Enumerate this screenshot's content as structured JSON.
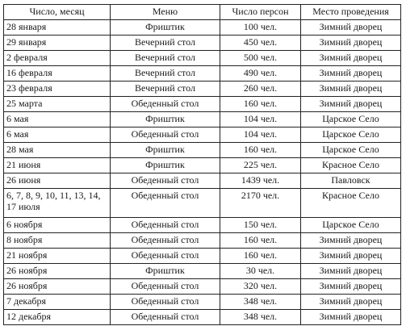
{
  "headers": [
    "Число, месяц",
    "Меню",
    "Число персон",
    "Место проведения"
  ],
  "rows": [
    [
      "28 января",
      "Фриштик",
      "100 чел.",
      "Зимний дворец"
    ],
    [
      "29 января",
      "Вечерний стол",
      "450 чел.",
      "Зимний дворец"
    ],
    [
      "2 февраля",
      "Вечерний стол",
      "500 чел.",
      "Зимний дворец"
    ],
    [
      "16 февраля",
      "Вечерний стол",
      "490 чел.",
      "Зимний дворец"
    ],
    [
      "23 февраля",
      "Вечерний стол",
      "260 чел.",
      "Зимний дворец"
    ],
    [
      "25 марта",
      "Обеденный стол",
      "160 чел.",
      "Зимний дворец"
    ],
    [
      "6 мая",
      "Фриштик",
      "104 чел.",
      "Царское Село"
    ],
    [
      "6 мая",
      "Обеденный стол",
      "104 чел.",
      "Царское Село"
    ],
    [
      "28 мая",
      "Фриштик",
      "160 чел.",
      "Царское Село"
    ],
    [
      "21 июня",
      "Фриштик",
      "225 чел.",
      "Красное Село"
    ],
    [
      "26 июня",
      "Обеденный стол",
      "1439 чел.",
      "Павловск"
    ],
    [
      "6, 7, 8, 9, 10, 11, 13, 14, 17 июля",
      "Обеденный стол",
      "2170 чел.",
      "Красное Село"
    ],
    [
      "6 ноября",
      "Обеденный стол",
      "150 чел.",
      "Царское Село"
    ],
    [
      "8 ноября",
      "Обеденный стол",
      "160 чел.",
      "Зимний дворец"
    ],
    [
      "21 ноября",
      "Обеденный стол",
      "160 чел.",
      "Зимний дворец"
    ],
    [
      "26 ноября",
      "Фриштик",
      "30 чел.",
      "Зимний дворец"
    ],
    [
      "26 ноября",
      "Обеденный стол",
      "320 чел.",
      "Зимний дворец"
    ],
    [
      "7 декабря",
      "Обеденный стол",
      "348 чел.",
      "Зимний дворец"
    ],
    [
      "12 декабря",
      "Обеденный стол",
      "348 чел.",
      "Зимний дворец"
    ]
  ]
}
